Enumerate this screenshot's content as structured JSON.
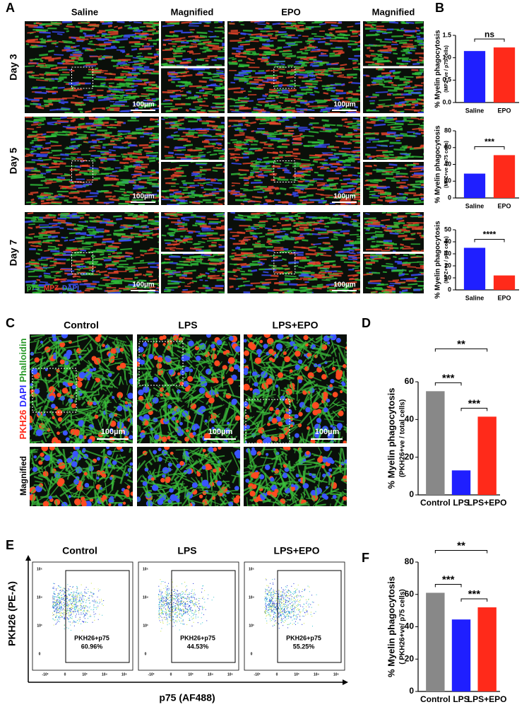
{
  "figure": {
    "panels": [
      "A",
      "B",
      "C",
      "D",
      "E",
      "F"
    ],
    "a": {
      "columns": [
        "Saline",
        "Magnified",
        "EPO",
        "Magnified"
      ],
      "rows": [
        "Day 3",
        "Day 5",
        "Day 7"
      ],
      "scale": "100µm",
      "stain": [
        "p75",
        "MPZ",
        "DAPI"
      ]
    },
    "c": {
      "columns": [
        "Control",
        "LPS",
        "LPS+EPO"
      ],
      "row": "Magnified",
      "stain": [
        "PKH26",
        "DAPI",
        "Phalloidin"
      ],
      "scale": "100µm"
    },
    "e": {
      "columns": [
        "Control",
        "LPS",
        "LPS+EPO"
      ],
      "ylabel": "PKH26 (PE-A)",
      "xlabel": "p75 (AF488)",
      "gate": "PKH26+p75",
      "percents": [
        "60.96%",
        "44.53%",
        "55.25%"
      ],
      "yticks": [
        "10⁵",
        "10⁴",
        "10³",
        "0"
      ],
      "xticks": [
        "-10³",
        "0",
        "10³",
        "10⁴",
        "10⁵"
      ]
    }
  },
  "chart_data": [
    {
      "type": "bar",
      "ylabel": "% Myelin phagocytosis",
      "ylabel2": "(MPZ+ve / p75 cells)",
      "categories": [
        "Saline",
        "EPO"
      ],
      "values": [
        1.15,
        1.23
      ],
      "colors": [
        "#1f1fff",
        "#ff2a1a"
      ],
      "ylim": [
        0,
        1.5
      ],
      "yticks": [
        {
          "value": 0,
          "label": "0.0"
        },
        {
          "value": 0.5,
          "label": "0.5"
        },
        {
          "value": 1,
          "label": "1.0"
        },
        {
          "value": 1.5,
          "label": "1.5"
        }
      ],
      "comparisons": [
        {
          "between": [
            "Saline",
            "EPO"
          ],
          "label": "ns"
        }
      ]
    },
    {
      "type": "bar",
      "ylabel": "% Myelin phagocytosis",
      "ylabel2": "(MPZ+ve / p75 cells)",
      "categories": [
        "Saline",
        "EPO"
      ],
      "values": [
        29,
        51
      ],
      "colors": [
        "#1f1fff",
        "#ff2a1a"
      ],
      "ylim": [
        0,
        80
      ],
      "yticks": [
        0,
        20,
        40,
        60,
        80
      ],
      "comparisons": [
        {
          "between": [
            "Saline",
            "EPO"
          ],
          "label": "***"
        }
      ]
    },
    {
      "type": "bar",
      "ylabel": "% Myelin phagocytosis",
      "ylabel2": "(MPZ+ve / p75 cells)",
      "categories": [
        "Saline",
        "EPO"
      ],
      "values": [
        35,
        12
      ],
      "colors": [
        "#1f1fff",
        "#ff2a1a"
      ],
      "ylim": [
        0,
        50
      ],
      "yticks": [
        0,
        10,
        20,
        30,
        40,
        50
      ],
      "comparisons": [
        {
          "between": [
            "Saline",
            "EPO"
          ],
          "label": "****"
        }
      ]
    },
    {
      "type": "bar",
      "ylabel": "% Myelin phagocytosis",
      "ylabel2": "(PKH26+ve / total cells)",
      "categories": [
        "Control",
        "LPS",
        "LPS+EPO"
      ],
      "values": [
        55,
        13,
        41.5
      ],
      "colors": [
        "#888888",
        "#1f1fff",
        "#ff2a1a"
      ],
      "ylim": [
        0,
        60
      ],
      "yticks": [
        0,
        20,
        40,
        60
      ],
      "comparisons": [
        {
          "between": [
            "Control",
            "LPS"
          ],
          "label": "***"
        },
        {
          "between": [
            "LPS",
            "LPS+EPO"
          ],
          "label": "***"
        },
        {
          "between": [
            "Control",
            "LPS+EPO"
          ],
          "label": "**"
        }
      ]
    },
    {
      "type": "bar",
      "ylabel": "% Myelin phagocytosis",
      "ylabel2": "( PKH26+ve/ p75 cells)",
      "categories": [
        "Control",
        "LPS",
        "LPS+EPO"
      ],
      "values": [
        61,
        44.5,
        52
      ],
      "colors": [
        "#888888",
        "#1f1fff",
        "#ff2a1a"
      ],
      "ylim": [
        0,
        80
      ],
      "yticks": [
        0,
        20,
        40,
        60,
        80
      ],
      "comparisons": [
        {
          "between": [
            "Control",
            "LPS"
          ],
          "label": "***"
        },
        {
          "between": [
            "LPS",
            "LPS+EPO"
          ],
          "label": "***"
        },
        {
          "between": [
            "Control",
            "LPS+EPO"
          ],
          "label": "**"
        }
      ]
    }
  ]
}
